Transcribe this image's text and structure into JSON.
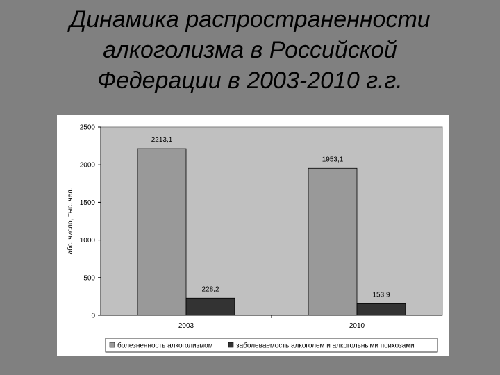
{
  "title": {
    "lines": [
      "Динамика распространенности",
      "алкоголизма в Российской",
      "Федерации в 2003-2010 г.г."
    ]
  },
  "colors": {
    "slide_bg": "#808080",
    "plot_bg": "#c0c0c0",
    "series_1": "#999999",
    "series_2": "#333333"
  },
  "chart_data": {
    "type": "bar",
    "categories": [
      "2003",
      "2010"
    ],
    "series": [
      {
        "name": "болезненность алкоголизмом",
        "values": [
          2213.1,
          1953.1
        ],
        "labels": [
          "2213,1",
          "1953,1"
        ]
      },
      {
        "name": "заболеваемость алкоголем и алкогольными психозами",
        "values": [
          228.2,
          153.9
        ],
        "labels": [
          "228,2",
          "153,9"
        ]
      }
    ],
    "ylabel": "абс. число, тыс. чел.",
    "ylim": [
      0,
      2500
    ],
    "yticks": [
      "0",
      "500",
      "1000",
      "1500",
      "2000",
      "2500"
    ],
    "grid": false,
    "legend": "bottom"
  }
}
